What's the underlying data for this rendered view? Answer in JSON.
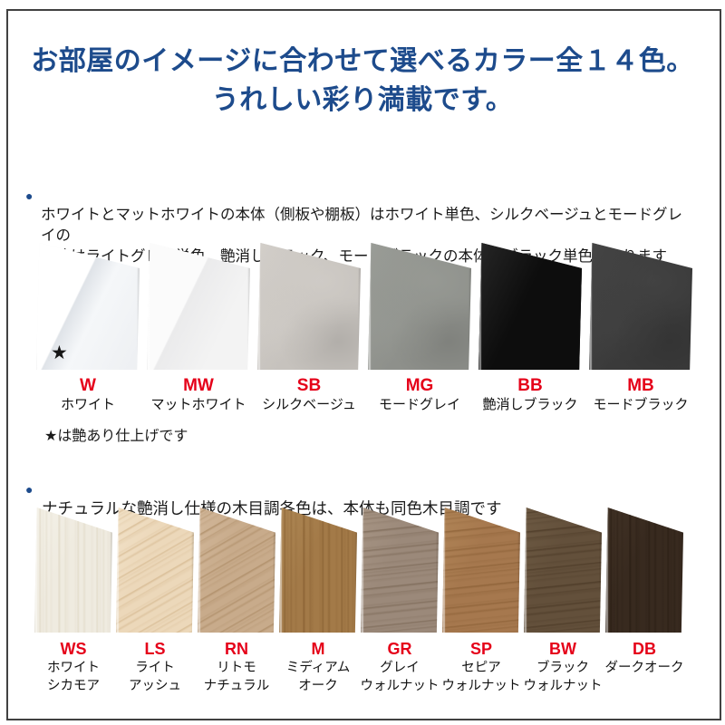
{
  "title": {
    "line1": "お部屋のイメージに合わせて選べるカラー全１４色。",
    "line2": "うれしい彩り満載です。"
  },
  "notes": {
    "note1": {
      "bullet": "●",
      "text": "ホワイトとマットホワイトの本体（側板や棚板）はホワイト単色、シルクベージュとモードグレイの\n本体はライトグレイ単色、艶消しブラック、モードブラックの本体はブラック単色となります"
    },
    "gloss_note": "★は艶あり仕上げです",
    "note2": {
      "bullet": "●",
      "text": "ナチュラルな艶消し仕様の木目調各色は、本体も同色木目調です"
    }
  },
  "colors": {
    "title_blue": "#1d4b8c",
    "accent_red": "#e50019",
    "body_text": "#1a1a1a",
    "frame_border": "#414141"
  },
  "swatch_rows": [
    {
      "id": "solid-colors",
      "swatches": [
        {
          "code": "W",
          "name_lines": [
            "ホワイト"
          ],
          "base": "#f2f3f5",
          "tone": "#ffffff",
          "streak": "",
          "grain": "none",
          "finish": "gloss",
          "star": "★"
        },
        {
          "code": "MW",
          "name_lines": [
            "マットホワイト"
          ],
          "base": "#f3f3f3",
          "tone": "#fafafa",
          "streak": "",
          "grain": "none",
          "finish": "sheen"
        },
        {
          "code": "SB",
          "name_lines": [
            "シルクベージュ"
          ],
          "base": "#c6c2bd",
          "tone": "#d6d2cd",
          "streak": "",
          "grain": "none",
          "finish": "plaster"
        },
        {
          "code": "MG",
          "name_lines": [
            "モードグレイ"
          ],
          "base": "#8e908b",
          "tone": "#9da09a",
          "streak": "",
          "grain": "none",
          "finish": "concrete"
        },
        {
          "code": "BB",
          "name_lines": [
            "艶消しブラック"
          ],
          "base": "#0d0d0d",
          "tone": "#262626",
          "streak": "",
          "grain": "none",
          "finish": "flat"
        },
        {
          "code": "MB",
          "name_lines": [
            "モードブラック"
          ],
          "base": "#3a3a3a",
          "tone": "#484848",
          "streak": "",
          "grain": "none",
          "finish": "concrete"
        }
      ]
    },
    {
      "id": "woodgrain-colors",
      "swatches": [
        {
          "code": "WS",
          "name_lines": [
            "ホワイト",
            "シカモア"
          ],
          "base": "#efebe0",
          "tone": "#f5f2e9",
          "streak": "#ddd5c2",
          "grain": "vertical",
          "finish": "wood"
        },
        {
          "code": "LS",
          "name_lines": [
            "ライト",
            "アッシュ"
          ],
          "base": "#ecd8ba",
          "tone": "#f3e4cb",
          "streak": "#d4b78e",
          "grain": "diagonal",
          "finish": "wood"
        },
        {
          "code": "RN",
          "name_lines": [
            "リトモ",
            "ナチュラル"
          ],
          "base": "#c8ab8b",
          "tone": "#d4ba9d",
          "streak": "#ab8a64",
          "grain": "diagonal",
          "finish": "wood"
        },
        {
          "code": "M",
          "name_lines": [
            "ミディアム",
            "オーク"
          ],
          "base": "#a37a48",
          "tone": "#b08a57",
          "streak": "#855d2f",
          "grain": "vertical",
          "finish": "wood"
        },
        {
          "code": "GR",
          "name_lines": [
            "グレイ",
            "ウォルナット"
          ],
          "base": "#9b897a",
          "tone": "#a99786",
          "streak": "#7b6856",
          "grain": "horizontal",
          "finish": "wood"
        },
        {
          "code": "SP",
          "name_lines": [
            "セピア",
            "ウォルナット"
          ],
          "base": "#a6784e",
          "tone": "#b28758",
          "streak": "#8a5f35",
          "grain": "horizontal",
          "finish": "wood"
        },
        {
          "code": "BW",
          "name_lines": [
            "ブラック",
            "ウォルナット"
          ],
          "base": "#63503b",
          "tone": "#6f5c45",
          "streak": "#4a3825",
          "grain": "horizontal",
          "finish": "wood"
        },
        {
          "code": "DB",
          "name_lines": [
            "ダークオーク"
          ],
          "base": "#382a1f",
          "tone": "#423326",
          "streak": "#281c12",
          "grain": "vertical",
          "finish": "wood"
        }
      ]
    }
  ]
}
